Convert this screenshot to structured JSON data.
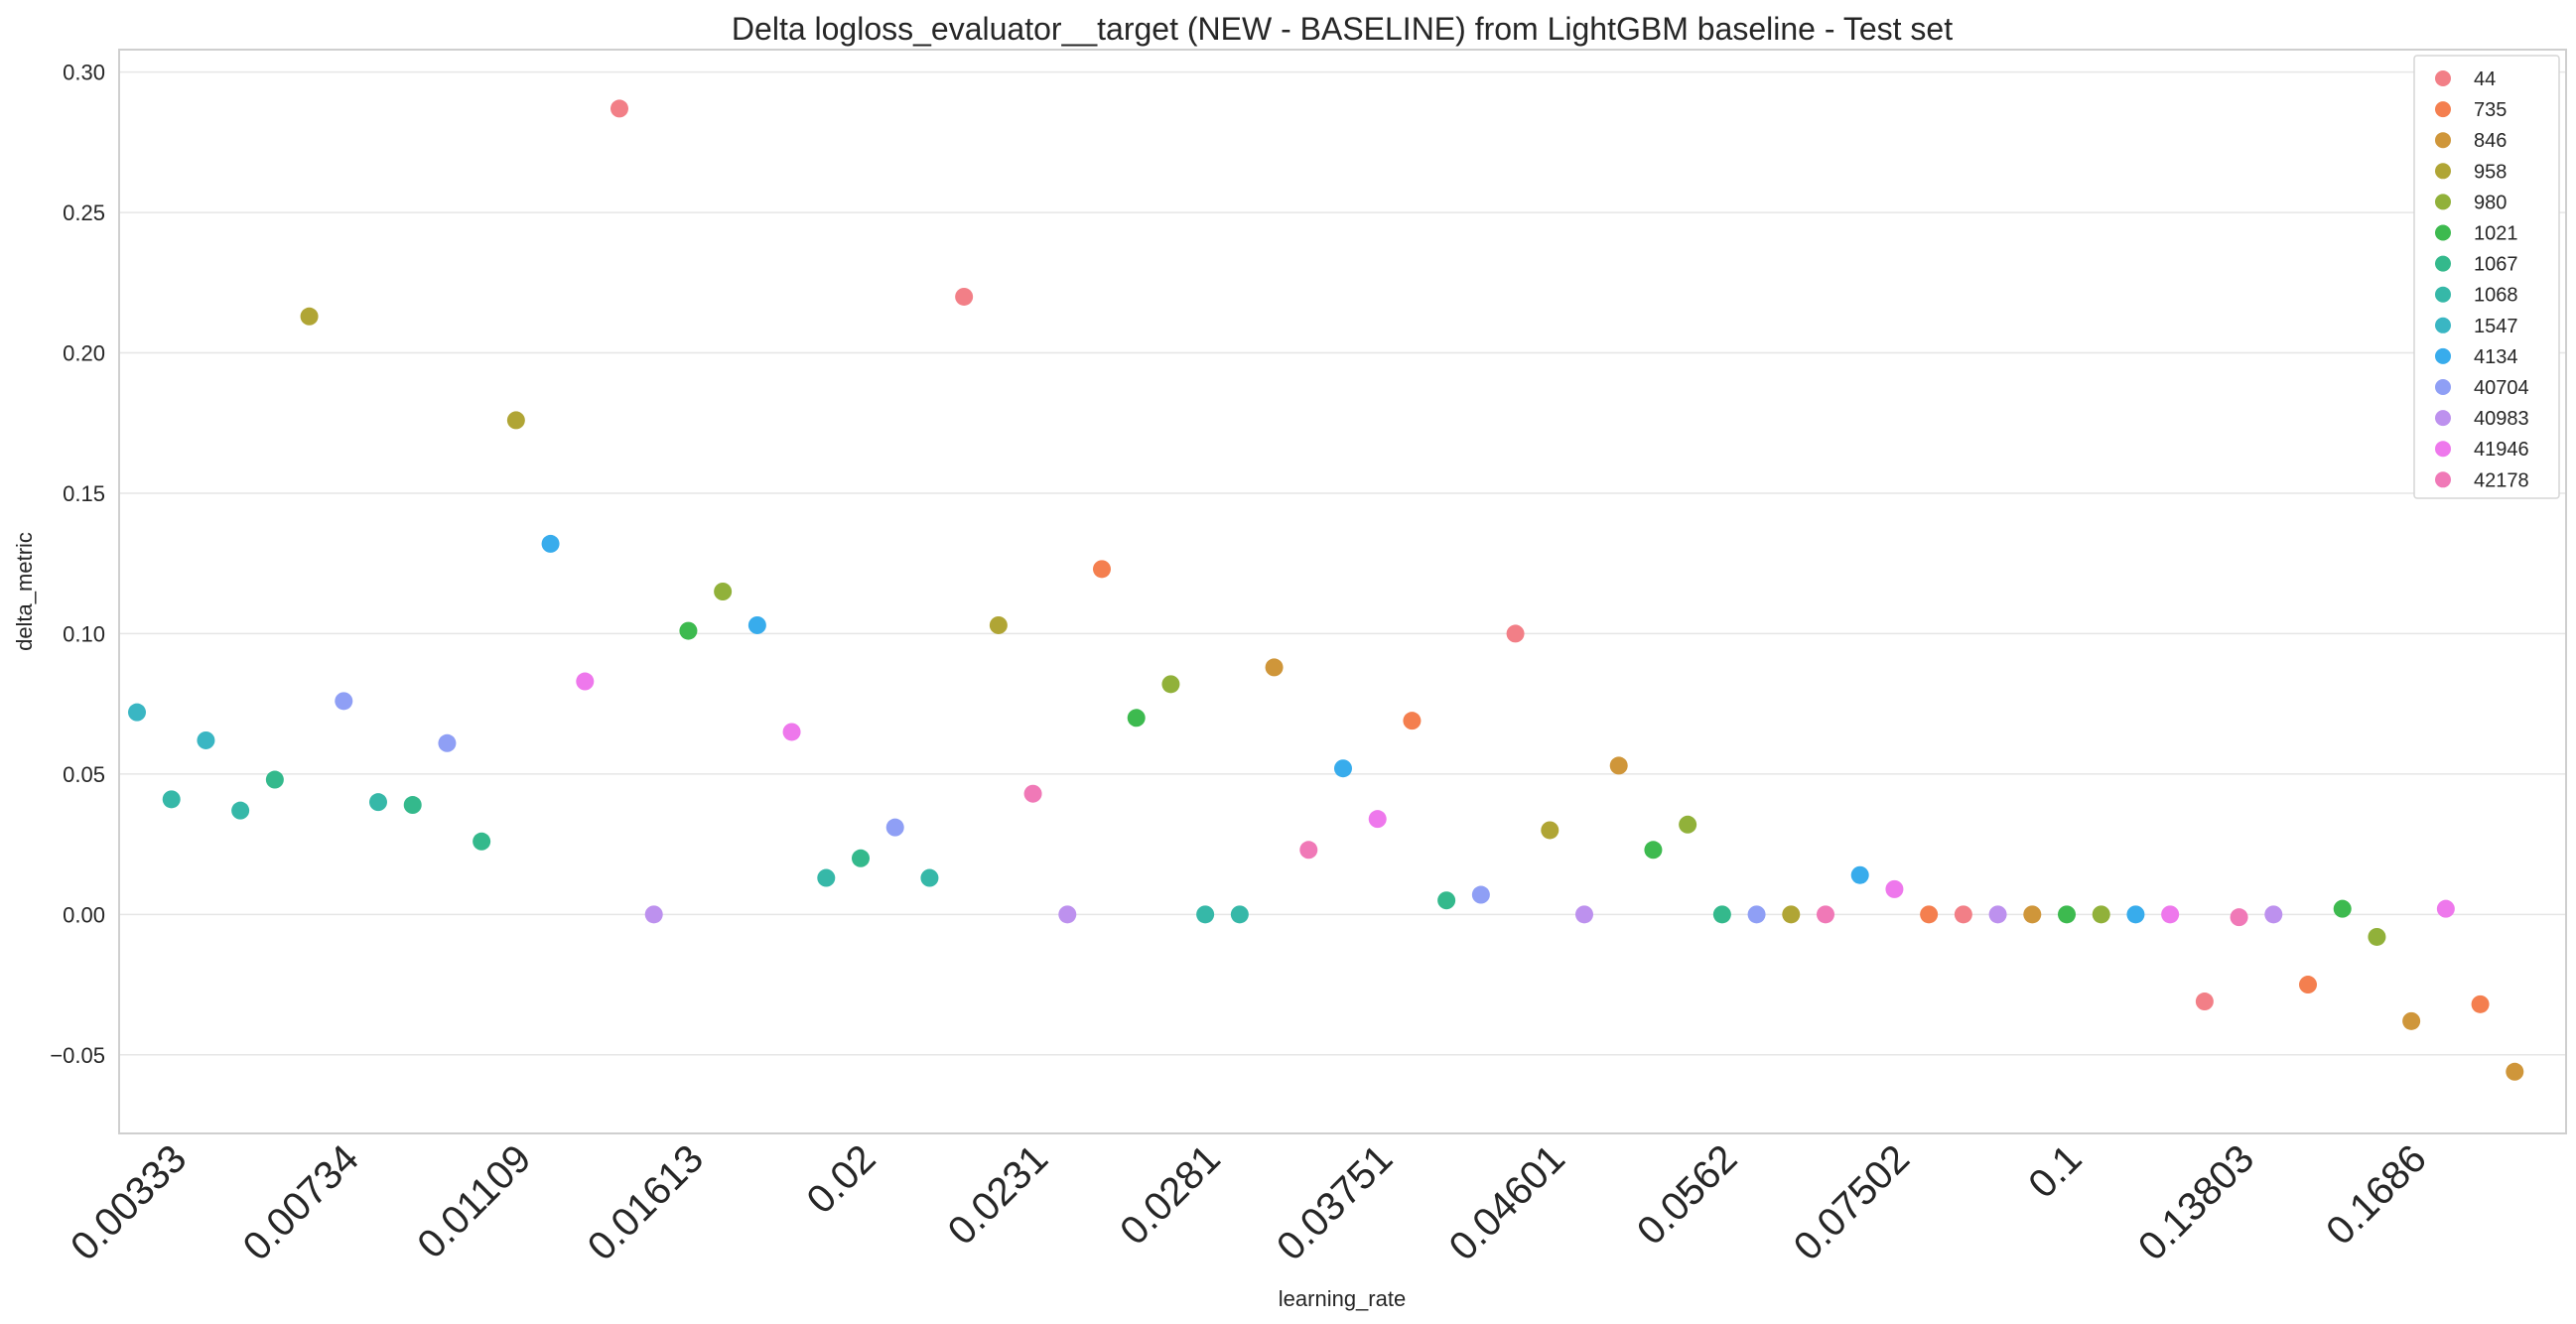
{
  "chart_data": {
    "type": "scatter",
    "title": "Delta logloss_evaluator__target (NEW - BASELINE) from LightGBM baseline - Test set",
    "xlabel": "learning_rate",
    "ylabel": "delta_metric",
    "ylim": [
      -0.078,
      0.308
    ],
    "yticks": [
      -0.05,
      0.0,
      0.05,
      0.1,
      0.15,
      0.2,
      0.25,
      0.3
    ],
    "ytick_labels": [
      "−0.05",
      "0.00",
      "0.05",
      "0.10",
      "0.15",
      "0.20",
      "0.25",
      "0.30"
    ],
    "x_tick_labels": [
      "0.00333",
      "0.00734",
      "0.01109",
      "0.01613",
      "0.02",
      "0.0231",
      "0.0281",
      "0.03751",
      "0.04601",
      "0.0562",
      "0.07502",
      "0.1",
      "0.13803",
      "0.1686"
    ],
    "x_tick_step": 5,
    "n_slots": 71,
    "grid": "horizontal",
    "legend_placement": "top-right",
    "legend_entries": [
      "44",
      "735",
      "846",
      "958",
      "980",
      "1021",
      "1067",
      "1068",
      "1547",
      "4134",
      "40704",
      "40983",
      "41946",
      "42178"
    ],
    "legend_colors": [
      "#f27f87",
      "#f47f4f",
      "#cf963a",
      "#b0a535",
      "#91b13a",
      "#3dba4f",
      "#34b98c",
      "#36b8a8",
      "#3ab6c3",
      "#38acec",
      "#8f9ff5",
      "#bd91ee",
      "#ee78ec",
      "#f079b7"
    ],
    "values": [
      0.072,
      0.041,
      0.062,
      0.037,
      0.048,
      0.213,
      0.076,
      0.04,
      0.039,
      0.061,
      0.026,
      0.176,
      0.132,
      0.083,
      0.287,
      0.0,
      0.101,
      0.115,
      0.103,
      0.065,
      0.013,
      0.02,
      0.031,
      0.013,
      0.22,
      0.103,
      0.043,
      0.0,
      0.123,
      0.07,
      0.082,
      0.0,
      0.0,
      0.088,
      0.023,
      0.052,
      0.034,
      0.069,
      0.005,
      0.007,
      0.1,
      0.03,
      0.0,
      0.053,
      0.023,
      0.032,
      0.0,
      0.0,
      0.0,
      0.0,
      0.014,
      0.009,
      0.0,
      0.0,
      0.0,
      0.0,
      0.0,
      0.0,
      0.0,
      0.0,
      -0.031,
      -0.001,
      0.0,
      -0.025,
      0.002,
      -0.008,
      -0.038,
      0.002,
      -0.032,
      -0.056
    ],
    "point_groups": [
      "1547",
      "1068",
      "1547",
      "1068",
      "1067",
      "958",
      "40704",
      "1068",
      "1067",
      "40704",
      "1067",
      "958",
      "4134",
      "41946",
      "44",
      "40983",
      "1021",
      "980",
      "4134",
      "41946",
      "1068",
      "1067",
      "40704",
      "1068",
      "44",
      "958",
      "42178",
      "40983",
      "735",
      "1021",
      "980",
      "1068",
      "1068",
      "846",
      "42178",
      "4134",
      "41946",
      "735",
      "1067",
      "40704",
      "44",
      "958",
      "40983",
      "846",
      "1021",
      "980",
      "1067",
      "40704",
      "958",
      "42178",
      "4134",
      "41946",
      "735",
      "44",
      "40983",
      "846",
      "1021",
      "980",
      "4134",
      "41946",
      "44",
      "42178",
      "40983",
      "735",
      "1021",
      "980",
      "846",
      "41946",
      "735",
      "846"
    ]
  }
}
